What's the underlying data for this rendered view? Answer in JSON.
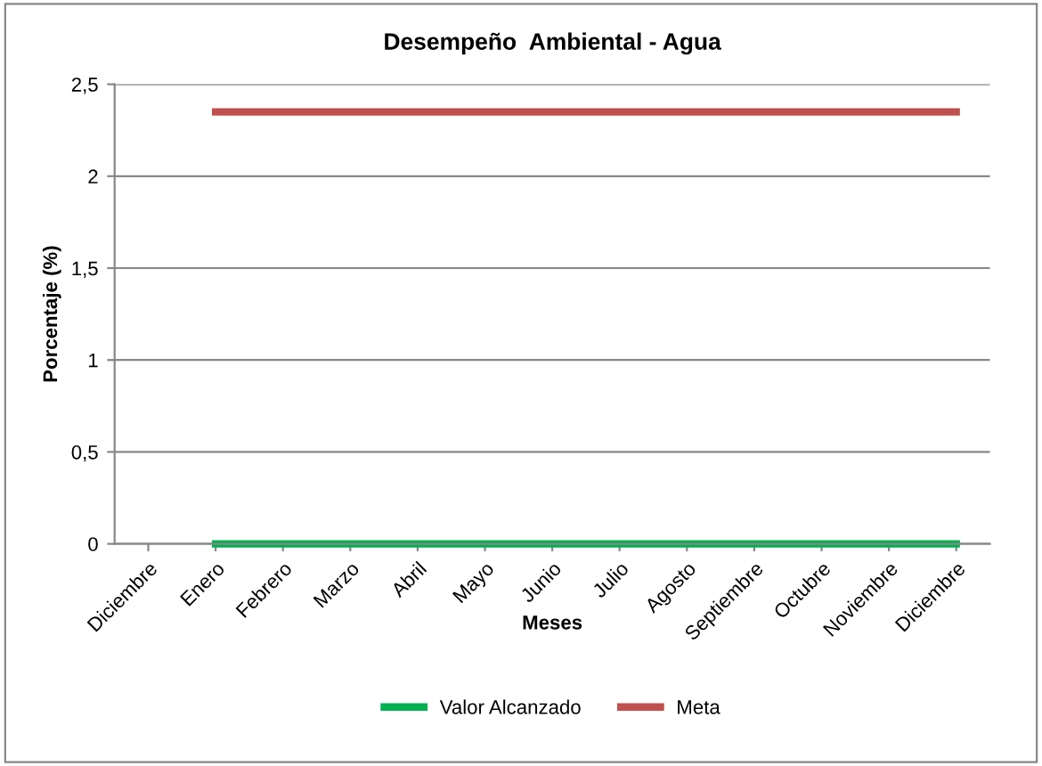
{
  "chart_data": {
    "type": "line",
    "title": "Desempeño  Ambiental - Agua",
    "xlabel": "Meses",
    "ylabel": "Porcentaje (%)",
    "categories": [
      "Diciembre",
      "Enero",
      "Febrero",
      "Marzo",
      "Abril",
      "Mayo",
      "Junio",
      "Julio",
      "Agosto",
      "Septiembre",
      "Octubre",
      "Noviembre",
      "Diciembre"
    ],
    "series": [
      {
        "name": "Valor Alcanzado",
        "color": "#00b050",
        "values": [
          null,
          0,
          0,
          0,
          0,
          0,
          0,
          0,
          0,
          0,
          0,
          0,
          0
        ]
      },
      {
        "name": "Meta",
        "color": "#c0504d",
        "values": [
          null,
          2.35,
          2.35,
          2.35,
          2.35,
          2.35,
          2.35,
          2.35,
          2.35,
          2.35,
          2.35,
          2.35,
          2.35
        ]
      }
    ],
    "ylim": [
      0,
      2.5
    ],
    "yticks": [
      {
        "value": 0,
        "label": "0"
      },
      {
        "value": 0.5,
        "label": "0,5"
      },
      {
        "value": 1,
        "label": "1"
      },
      {
        "value": 1.5,
        "label": "1,5"
      },
      {
        "value": 2,
        "label": "2"
      },
      {
        "value": 2.5,
        "label": "2,5"
      }
    ],
    "grid": "y",
    "legend": "bottom",
    "marker": "none",
    "line_style": "solid"
  }
}
